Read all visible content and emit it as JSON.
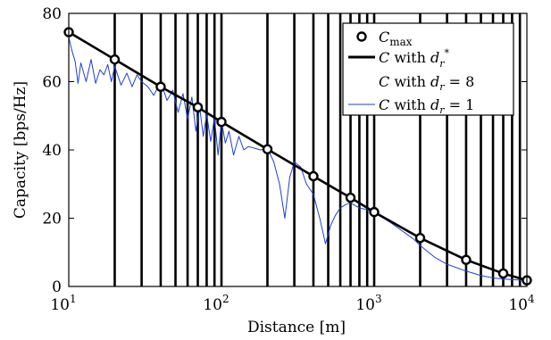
{
  "chart_data": {
    "type": "line",
    "xlabel": "Distance [m]",
    "ylabel": "Capacity [bps/Hz]",
    "xscale": "log",
    "xlim": [
      10,
      10000
    ],
    "ylim": [
      0,
      80
    ],
    "grid": "vertical-lines",
    "xtick_labels": [
      {
        "base": "10",
        "exp": "1",
        "value": 10
      },
      {
        "base": "10",
        "exp": "2",
        "value": 100
      },
      {
        "base": "10",
        "exp": "3",
        "value": 1000
      },
      {
        "base": "10",
        "exp": "4",
        "value": 10000
      }
    ],
    "yticks": [
      0,
      20,
      40,
      60,
      80
    ],
    "legend": {
      "position": "top-right",
      "entries": [
        {
          "label": "C_max",
          "style": "circle-marker",
          "color": "#000000"
        },
        {
          "label": "C with d_r^*",
          "style": "thick-line",
          "color": "#000000"
        },
        {
          "label": "C with d_r = 8",
          "style": "thin-line",
          "color": "#ffffff"
        },
        {
          "label": "C with d_r = 1",
          "style": "thin-line",
          "color": "#1f3fd6"
        }
      ]
    },
    "vertical_lines_x": [
      20,
      30,
      40,
      50,
      60,
      70,
      80,
      90,
      100,
      200,
      300,
      400,
      500,
      600,
      700,
      800,
      900,
      1000,
      2000,
      3000,
      4000,
      5000,
      6000,
      7000,
      8000,
      9000
    ],
    "series": [
      {
        "name": "C_max",
        "style": "markers",
        "x": [
          10,
          20,
          40,
          70,
          100,
          200,
          400,
          700,
          1000,
          2000,
          4000,
          7000,
          10000
        ],
        "y": [
          74.5,
          66.5,
          58.5,
          52.5,
          48.2,
          40.2,
          32.3,
          26,
          21.8,
          14.2,
          7.8,
          3.8,
          1.8
        ]
      },
      {
        "name": "C with d_r^*",
        "style": "thick-line",
        "x": [
          10,
          20,
          40,
          70,
          100,
          200,
          400,
          700,
          1000,
          2000,
          4000,
          7000,
          10000
        ],
        "y": [
          74.5,
          66.5,
          58.5,
          52.5,
          48.2,
          40.2,
          32.3,
          26,
          21.8,
          14.2,
          7.8,
          3.8,
          1.8
        ]
      },
      {
        "name": "C with d_r = 1",
        "style": "thin-line",
        "color": "#1f3fd6",
        "x": [
          10,
          10.5,
          11,
          11.5,
          12,
          13,
          14,
          15,
          16,
          17,
          18,
          19,
          20,
          22,
          24,
          26,
          28,
          30,
          33,
          36,
          40,
          44,
          48,
          52,
          56,
          60,
          64,
          68,
          72,
          76,
          80,
          85,
          90,
          95,
          100,
          106,
          112,
          120,
          130,
          140,
          150,
          165,
          180,
          200,
          220,
          240,
          260,
          280,
          300,
          330,
          360,
          400,
          440,
          480,
          520,
          560,
          600,
          650,
          700,
          800,
          900,
          1000,
          1100,
          1200,
          1300,
          1500,
          1800,
          2000,
          2500,
          3000,
          4000,
          5000,
          6000,
          7000,
          8000,
          10000
        ],
        "y": [
          73,
          69,
          66,
          59.5,
          65.5,
          60,
          66.5,
          59.5,
          63.5,
          62,
          65,
          60,
          64.5,
          59,
          62.5,
          58.5,
          62,
          60,
          58.5,
          56,
          60,
          54.5,
          57.5,
          51,
          56.5,
          49,
          55.5,
          45.5,
          52.5,
          44,
          50.5,
          42.5,
          49.5,
          38.5,
          48.5,
          42,
          45.5,
          38.5,
          44,
          40,
          41,
          40.5,
          40,
          40.5,
          36.5,
          30,
          20,
          32,
          36.5,
          35,
          30,
          27,
          20,
          12.5,
          18,
          21,
          23,
          24,
          24.5,
          23,
          22.5,
          21.5,
          20.5,
          19.5,
          18.5,
          16.5,
          14,
          12,
          8.5,
          6.5,
          4.5,
          3.2,
          2.5,
          2.2,
          2,
          1.8
        ]
      }
    ]
  }
}
